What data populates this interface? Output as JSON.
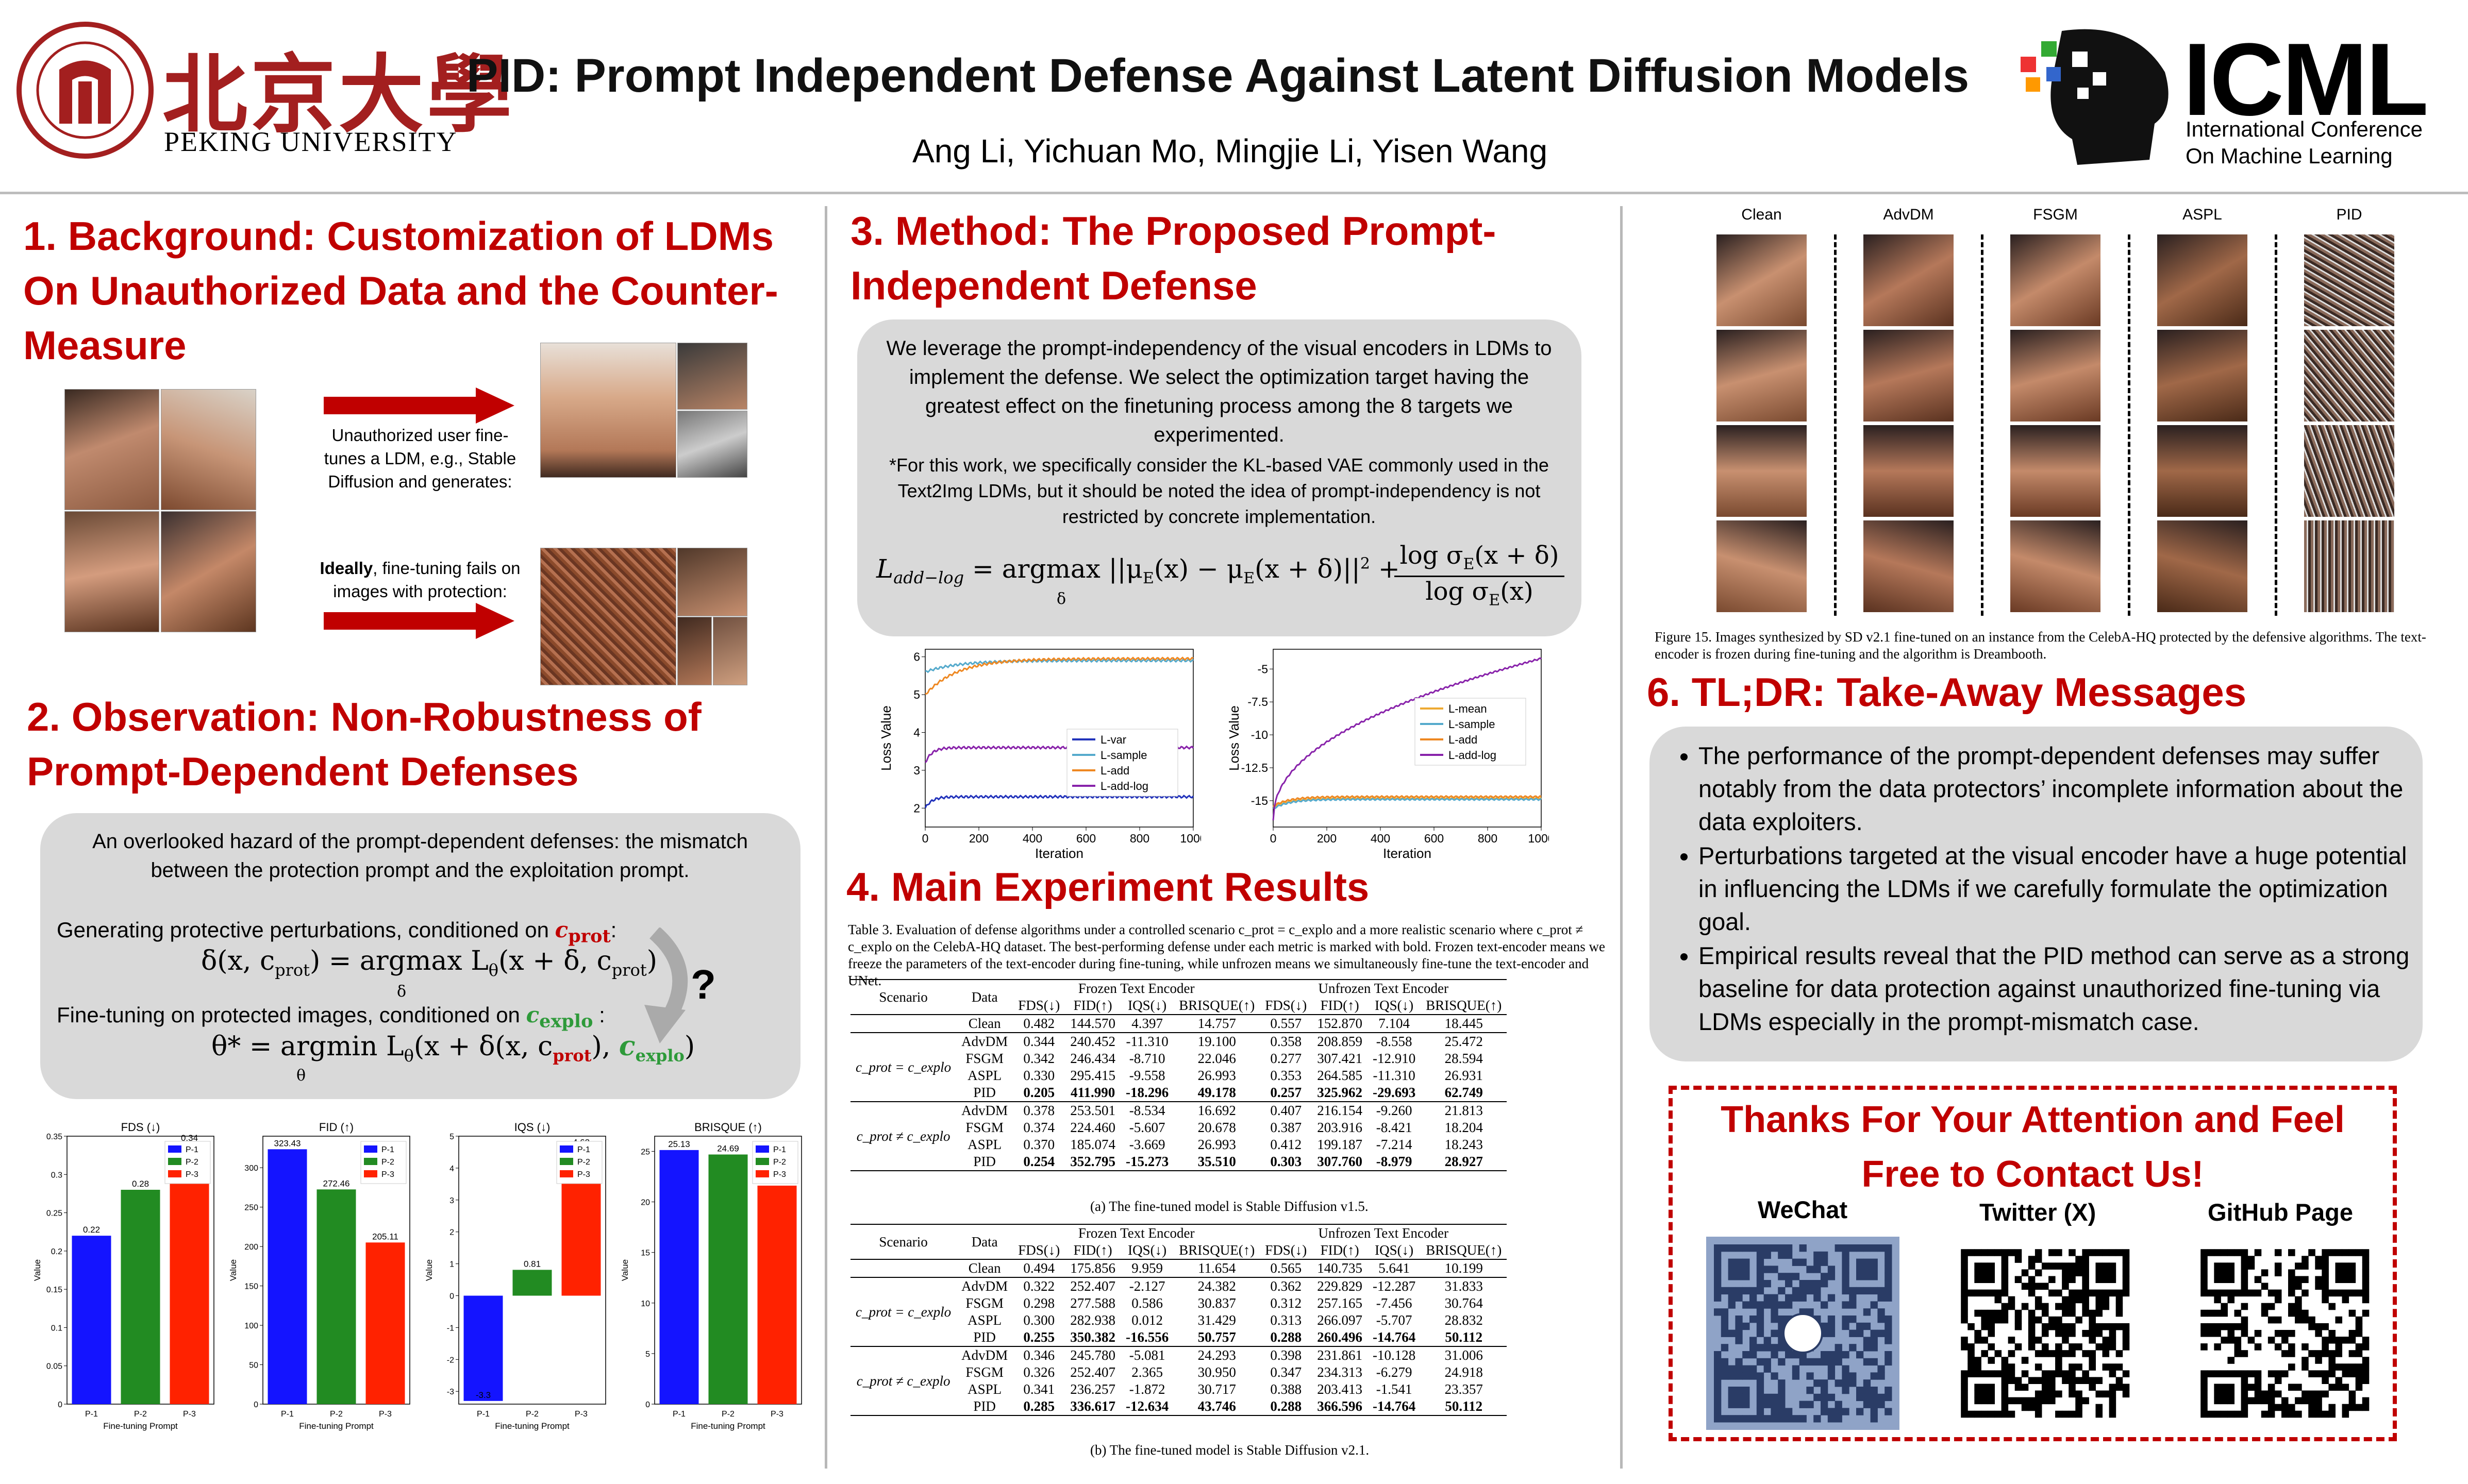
{
  "header": {
    "title": "PID: Prompt Independent Defense Against Latent Diffusion Models",
    "authors": "Ang Li, Yichuan Mo, Mingjie Li, Yisen Wang",
    "pku_en": "PEKING UNIVERSITY",
    "pku_cn": "北京大學",
    "seal_top": "PEKING UNIVERSITY",
    "seal_year": "1898",
    "icml": "ICML",
    "icml_line1": "International Conference",
    "icml_line2": "On Machine Learning"
  },
  "s1": {
    "title": "1. Background: Customization of LDMs On Unauthorized Data and the Counter-Measure",
    "text1": "Unauthorized user fine-tunes a LDM, e.g., Stable Diffusion and generates:",
    "text2_bold": "Ideally",
    "text2_rest": ", fine-tuning fails on images with protection:"
  },
  "s2": {
    "title": "2. Observation: Non-Robustness of Prompt-Dependent Defenses",
    "intro": "An overlooked hazard of the prompt-dependent defenses: the mismatch between the protection prompt and the exploitation prompt.",
    "gen": "Generating protective perturbations, conditioned on",
    "ft": "Fine-tuning on protected images, conditioned on",
    "cprot": "c",
    "prot_sub": "prot",
    "explo_sub": "explo",
    "eq1_lhs": "δ(x, c",
    "eq1_mid": ") = argmax L",
    "eq1_rhs": "(x + δ, c",
    "eq2_lhs": "θ* = argmin L",
    "eq2_rhs": "(x + δ(x, c",
    "theta": "θ",
    "delta": "δ",
    "qmark": "?"
  },
  "s3": {
    "title": "3. Method: The Proposed Prompt-Independent Defense",
    "p1": "We leverage the prompt-independency of the visual encoders in LDMs to implement the defense. We select the optimization target having the greatest effect on the finetuning process among the 8 targets we experimented.",
    "p2": "*For this work, we specifically consider the KL-based VAE commonly used in the Text2Img LDMs, but it should be noted the idea of prompt-independency is not restricted by concrete implementation.",
    "eq_lhs": "L",
    "eq_sub": "add−log",
    "eq_mid": "= argmax ||μ",
    "eq_body": "(x) − μ",
    "eq_body2": "(x + δ)||",
    "eq_sq": "2",
    "eq_num": "log σ",
    "eq_num2": "(x + δ)",
    "eq_den": "log σ",
    "eq_den2": "(x)",
    "E": "E",
    "plus": "+"
  },
  "s4": {
    "title": "4. Main Experiment Results",
    "caption": "Table 3. Evaluation of defense algorithms under a controlled scenario c_prot = c_explo and a more realistic scenario where c_prot ≠ c_explo on the CelebA-HQ dataset. The best-performing defense under each metric is marked with bold. Frozen text-encoder means we freeze the parameters of the text-encoder during fine-tuning, while unfrozen means we simultaneously fine-tune the text-encoder and UNet.",
    "sub_a": "(a) The fine-tuned model is Stable Diffusion v1.5.",
    "sub_b": "(b) The fine-tuned model is Stable Diffusion v2.1.",
    "h_scenario": "Scenario",
    "h_data": "Data",
    "h_frozen": "Frozen Text Encoder",
    "h_unfrozen": "Unfrozen Text Encoder",
    "metrics": [
      "FDS(↓)",
      "FID(↑)",
      "IQS(↓)",
      "BRISQUE(↑)",
      "FDS(↓)",
      "FID(↑)",
      "IQS(↓)",
      "BRISQUE(↑)"
    ],
    "sc_eq": "c_prot = c_explo",
    "sc_neq": "c_prot ≠ c_explo",
    "table_a": {
      "clean": [
        "Clean",
        "0.482",
        "144.570",
        "4.397",
        "14.757",
        "0.557",
        "152.870",
        "7.104",
        "18.445"
      ],
      "eq": [
        [
          "AdvDM",
          "0.344",
          "240.452",
          "-11.310",
          "19.100",
          "0.358",
          "208.859",
          "-8.558",
          "25.472"
        ],
        [
          "FSGM",
          "0.342",
          "246.434",
          "-8.710",
          "22.046",
          "0.277",
          "307.421",
          "-12.910",
          "28.594"
        ],
        [
          "ASPL",
          "0.330",
          "295.415",
          "-9.558",
          "26.993",
          "0.353",
          "264.585",
          "-11.310",
          "26.931"
        ],
        [
          "PID",
          "0.205",
          "411.990",
          "-18.296",
          "49.178",
          "0.257",
          "325.962",
          "-29.693",
          "62.749"
        ]
      ],
      "neq": [
        [
          "AdvDM",
          "0.378",
          "253.501",
          "-8.534",
          "16.692",
          "0.407",
          "216.154",
          "-9.260",
          "21.813"
        ],
        [
          "FSGM",
          "0.374",
          "224.460",
          "-5.607",
          "20.678",
          "0.387",
          "203.916",
          "-8.421",
          "18.204"
        ],
        [
          "ASPL",
          "0.370",
          "185.074",
          "-3.669",
          "26.993",
          "0.412",
          "199.187",
          "-7.214",
          "18.243"
        ],
        [
          "PID",
          "0.254",
          "352.795",
          "-15.273",
          "35.510",
          "0.303",
          "307.760",
          "-8.979",
          "28.927"
        ]
      ]
    },
    "table_b": {
      "clean": [
        "Clean",
        "0.494",
        "175.856",
        "9.959",
        "11.654",
        "0.565",
        "140.735",
        "5.641",
        "10.199"
      ],
      "eq": [
        [
          "AdvDM",
          "0.322",
          "252.407",
          "-2.127",
          "24.382",
          "0.362",
          "229.829",
          "-12.287",
          "31.833"
        ],
        [
          "FSGM",
          "0.298",
          "277.588",
          "0.586",
          "30.837",
          "0.312",
          "257.165",
          "-7.456",
          "30.764"
        ],
        [
          "ASPL",
          "0.300",
          "282.938",
          "0.012",
          "31.429",
          "0.313",
          "266.097",
          "-5.707",
          "28.832"
        ],
        [
          "PID",
          "0.255",
          "350.382",
          "-16.556",
          "50.757",
          "0.288",
          "260.496",
          "-14.764",
          "50.112"
        ]
      ],
      "neq": [
        [
          "AdvDM",
          "0.346",
          "245.780",
          "-5.081",
          "24.293",
          "0.398",
          "231.861",
          "-10.128",
          "31.006"
        ],
        [
          "FSGM",
          "0.326",
          "252.407",
          "2.365",
          "30.950",
          "0.347",
          "234.313",
          "-6.279",
          "24.918"
        ],
        [
          "ASPL",
          "0.341",
          "236.257",
          "-1.872",
          "30.717",
          "0.388",
          "203.413",
          "-1.541",
          "23.357"
        ],
        [
          "PID",
          "0.285",
          "336.617",
          "-12.634",
          "43.746",
          "0.288",
          "366.596",
          "-14.764",
          "50.112"
        ]
      ]
    }
  },
  "s5": {
    "cols": [
      "Clean",
      "AdvDM",
      "FSGM",
      "ASPL",
      "PID"
    ],
    "caption": "Figure 15. Images synthesized by SD v2.1 fine-tuned on an instance from the CelebA-HQ protected by the defensive algorithms. The text-encoder is frozen during fine-tuning and the algorithm is Dreambooth."
  },
  "s6": {
    "title": "6. TL;DR: Take-Away Messages",
    "bullets": [
      "The performance of the prompt-dependent defenses may suffer notably from the data protectors’ incomplete information about the data exploiters.",
      "Perturbations targeted at the visual encoder have a huge potential in influencing the LDMs if we carefully formulate the optimization goal.",
      "Empirical results reveal that the PID method can serve as a strong baseline for data protection against unauthorized fine-tuning via LDMs especially in the prompt-mismatch case."
    ]
  },
  "contact": {
    "line1": "Thanks For Your Attention and Feel",
    "line2": "Free to Contact Us!",
    "wechat": "WeChat",
    "twitter": "Twitter (X)",
    "github": "GitHub Page"
  },
  "charts": {
    "bar": [
      {
        "title": "FDS (↓)",
        "ylabel": "Value",
        "xlabel": "Fine-tuning Prompt",
        "ymin": 0,
        "ymax": 0.35,
        "ticks": [
          0,
          0.05,
          0.1,
          0.15,
          0.2,
          0.25,
          0.3,
          0.35
        ],
        "values": [
          0.22,
          0.28,
          0.34
        ],
        "labels": [
          "0.22",
          "0.28",
          "0.34"
        ]
      },
      {
        "title": "FID (↑)",
        "ylabel": "Value",
        "xlabel": "Fine-tuning Prompt",
        "ymin": 0,
        "ymax": 340,
        "ticks": [
          0,
          50,
          100,
          150,
          200,
          250,
          300
        ],
        "values": [
          323.43,
          272.46,
          205.11
        ],
        "labels": [
          "323.43",
          "272.46",
          "205.11"
        ]
      },
      {
        "title": "IQS (↓)",
        "ylabel": "Value",
        "xlabel": "Fine-tuning Prompt",
        "ymin": -3.4,
        "ymax": 5,
        "ticks": [
          -3,
          -2,
          -1,
          0,
          1,
          2,
          3,
          4,
          5
        ],
        "values": [
          -3.3,
          0.81,
          4.62
        ],
        "labels": [
          "-3.3",
          "0.81",
          "4.62"
        ]
      },
      {
        "title": "BRISQUE (↑)",
        "ylabel": "Value",
        "xlabel": "Fine-tuning Prompt",
        "ymin": 0,
        "ymax": 26.5,
        "ticks": [
          0,
          5,
          10,
          15,
          20,
          25
        ],
        "values": [
          25.13,
          24.69,
          21.61
        ],
        "labels": [
          "25.13",
          "24.69",
          ""
        ]
      }
    ],
    "bar_categories": [
      "P-1",
      "P-2",
      "P-3"
    ],
    "bar_colors": [
      "#1414ff",
      "#228b22",
      "#ff2200"
    ],
    "loss": [
      {
        "ylabel": "Loss Value",
        "xlabel": "Iteration",
        "xticks": [
          0,
          200,
          400,
          600,
          800,
          1000
        ],
        "yticks": [
          2,
          3,
          4,
          5,
          6
        ],
        "ymin": 1.5,
        "ymax": 6.2,
        "series": [
          {
            "name": "L-var",
            "color": "#2233bb"
          },
          {
            "name": "L-sample",
            "color": "#55aacc"
          },
          {
            "name": "L-add",
            "color": "#ee8822"
          },
          {
            "name": "L-add-log",
            "color": "#8822aa"
          }
        ]
      },
      {
        "ylabel": "Loss Value",
        "xlabel": "Iteration",
        "xticks": [
          0,
          200,
          400,
          600,
          800,
          1000
        ],
        "yticks": [
          -15,
          -12.5,
          -10,
          -7.5,
          -5
        ],
        "ymin": -17,
        "ymax": -3.5,
        "series": [
          {
            "name": "L-mean",
            "color": "#eeaa33"
          },
          {
            "name": "L-sample",
            "color": "#55aacc"
          },
          {
            "name": "L-add",
            "color": "#ee8822"
          },
          {
            "name": "L-add-log",
            "color": "#8822aa"
          }
        ]
      }
    ]
  }
}
